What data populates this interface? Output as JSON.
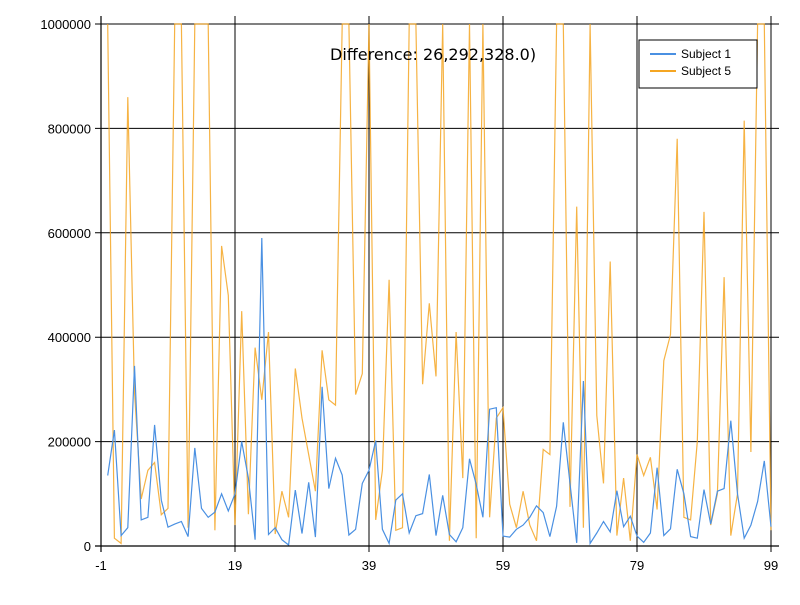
{
  "chart_data": {
    "type": "line",
    "title": "Difference: 26,292,328.0)",
    "xlabel": "",
    "ylabel": "",
    "xlim": [
      -1,
      99
    ],
    "ylim": [
      0,
      1000000
    ],
    "x_ticks": [
      -1,
      19,
      39,
      59,
      79,
      99
    ],
    "x_tick_labels": [
      "-1",
      "19",
      "39",
      "59",
      "79",
      "99"
    ],
    "y_ticks": [
      0,
      200000,
      400000,
      600000,
      800000,
      1000000
    ],
    "y_tick_labels": [
      "0",
      "200000",
      "400000",
      "600000",
      "800000",
      "1000000"
    ],
    "grid": true,
    "legend_position": "upper right",
    "x": [
      0,
      1,
      2,
      3,
      4,
      5,
      6,
      7,
      8,
      9,
      10,
      11,
      12,
      13,
      14,
      15,
      16,
      17,
      18,
      19,
      20,
      21,
      22,
      23,
      24,
      25,
      26,
      27,
      28,
      29,
      30,
      31,
      32,
      33,
      34,
      35,
      36,
      37,
      38,
      39,
      40,
      41,
      42,
      43,
      44,
      45,
      46,
      47,
      48,
      49,
      50,
      51,
      52,
      53,
      54,
      55,
      56,
      57,
      58,
      59,
      60,
      61,
      62,
      63,
      64,
      65,
      66,
      67,
      68,
      69,
      70,
      71,
      72,
      73,
      74,
      75,
      76,
      77,
      78,
      79,
      80,
      81,
      82,
      83,
      84,
      85,
      86,
      87,
      88,
      89,
      90,
      91,
      92,
      93,
      94,
      95,
      96,
      97,
      98,
      99
    ],
    "series": [
      {
        "name": "Subject 1",
        "color": "#4a90e2",
        "values": [
          135000,
          222000,
          20000,
          35000,
          345000,
          50000,
          55000,
          232000,
          88000,
          36000,
          42000,
          47000,
          18000,
          188000,
          72000,
          55000,
          65000,
          100000,
          67000,
          100000,
          200000,
          130000,
          12000,
          590000,
          22000,
          35000,
          12000,
          2000,
          107000,
          24000,
          122000,
          17000,
          305000,
          110000,
          168000,
          136000,
          21000,
          32000,
          120000,
          145000,
          202000,
          32000,
          5000,
          88000,
          100000,
          25000,
          58000,
          62000,
          137000,
          20000,
          97000,
          22000,
          8000,
          35000,
          167000,
          118000,
          55000,
          262000,
          265000,
          19000,
          17000,
          32000,
          40000,
          55000,
          77000,
          64000,
          18000,
          76000,
          237000,
          120000,
          6000,
          316000,
          5000,
          25000,
          47000,
          27000,
          106000,
          37000,
          57000,
          19000,
          7000,
          25000,
          150000,
          20000,
          33000,
          147000,
          100000,
          18000,
          15000,
          108000,
          42000,
          105000,
          110000,
          240000,
          100000,
          15000,
          40000,
          85000,
          163000,
          37000
        ]
      },
      {
        "name": "Subject 5",
        "color": "#f5a623",
        "values": [
          1000000,
          15000,
          5000,
          860000,
          295000,
          90000,
          145000,
          160000,
          60000,
          72000,
          1000000,
          1000000,
          35000,
          1000000,
          1000000,
          1000000,
          30000,
          575000,
          480000,
          40000,
          450000,
          61000,
          380000,
          280000,
          410000,
          23000,
          105000,
          55000,
          340000,
          245000,
          175000,
          105000,
          375000,
          280000,
          270000,
          1000000,
          1000000,
          290000,
          330000,
          1000000,
          50000,
          145000,
          510000,
          30000,
          35000,
          1000000,
          1000000,
          310000,
          465000,
          325000,
          1000000,
          10000,
          410000,
          130000,
          1000000,
          15000,
          1000000,
          55000,
          245000,
          265000,
          80000,
          35000,
          105000,
          40000,
          10000,
          185000,
          175000,
          1000000,
          1000000,
          75000,
          650000,
          35000,
          1000000,
          250000,
          120000,
          545000,
          20000,
          130000,
          10000,
          175000,
          135000,
          170000,
          70000,
          355000,
          405000,
          780000,
          55000,
          50000,
          200000,
          640000,
          40000,
          100000,
          515000,
          20000,
          100000,
          815000,
          180000,
          1000000,
          1000000,
          30000
        ]
      }
    ]
  },
  "legend": {
    "items": [
      {
        "label": "Subject 1",
        "color": "#4a90e2"
      },
      {
        "label": "Subject 5",
        "color": "#f5a623"
      }
    ]
  }
}
